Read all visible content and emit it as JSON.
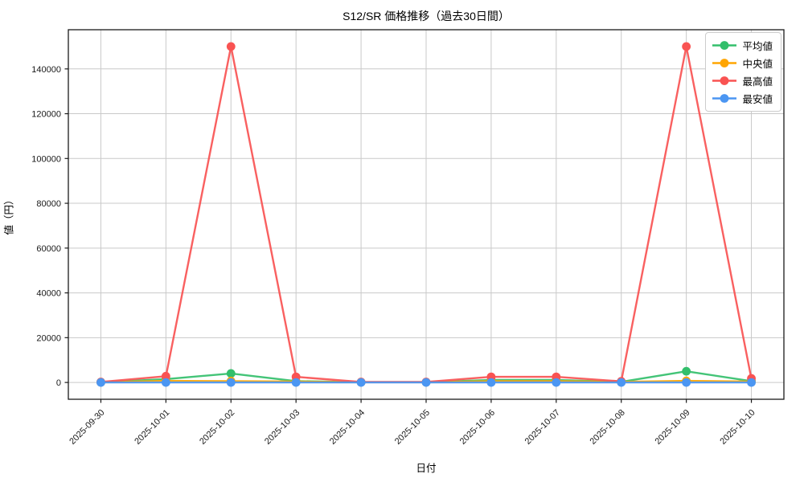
{
  "chart_data": {
    "type": "line",
    "title": "S12/SR 価格推移（過去30日間）",
    "xlabel": "日付",
    "ylabel": "値（円）",
    "categories": [
      "2025-09-30",
      "2025-10-01",
      "2025-10-02",
      "2025-10-03",
      "2025-10-04",
      "2025-10-05",
      "2025-10-06",
      "2025-10-07",
      "2025-10-08",
      "2025-10-09",
      "2025-10-10"
    ],
    "series": [
      {
        "name": "平均値",
        "color": "#33bf6b",
        "values": [
          100,
          1500,
          4000,
          600,
          100,
          100,
          1100,
          1100,
          300,
          5000,
          600
        ]
      },
      {
        "name": "中央値",
        "color": "#ffa502",
        "values": [
          100,
          700,
          600,
          400,
          100,
          100,
          600,
          600,
          300,
          700,
          400
        ]
      },
      {
        "name": "最高値",
        "color": "#f95352",
        "values": [
          200,
          2800,
          150000,
          2500,
          200,
          200,
          2500,
          2500,
          500,
          150000,
          1800
        ]
      },
      {
        "name": "最安値",
        "color": "#4b96f2",
        "values": [
          0,
          0,
          0,
          0,
          0,
          0,
          0,
          0,
          0,
          0,
          0
        ]
      }
    ],
    "yticks": [
      0,
      20000,
      40000,
      60000,
      80000,
      100000,
      120000,
      140000
    ],
    "ylim": [
      -7500,
      157500
    ],
    "grid": true,
    "legend_position": "upper right",
    "colors": {
      "grid": "#c9c9c9",
      "spine": "#1a1a1a",
      "tick_label": "#1a1a1a"
    }
  }
}
